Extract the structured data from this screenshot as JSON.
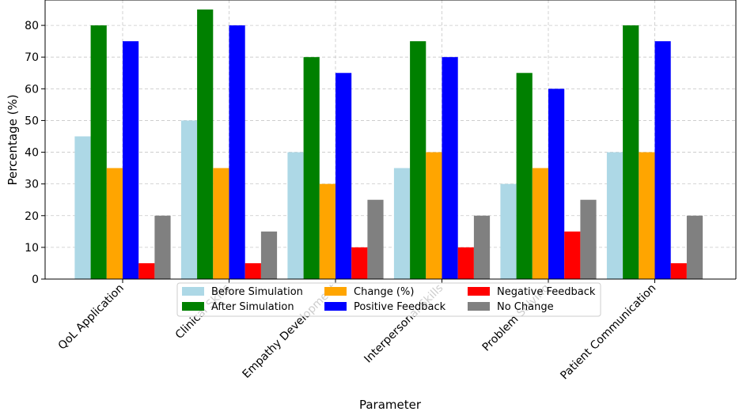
{
  "chart_data": {
    "type": "bar",
    "title": "",
    "xlabel": "Parameter",
    "ylabel": "Percentage (%)",
    "ylim": [
      0,
      88
    ],
    "yticks": [
      0,
      10,
      20,
      30,
      40,
      50,
      60,
      70,
      80
    ],
    "grid": true,
    "legend_position": "bottom-center",
    "categories": [
      "QoL Application",
      "Clinical Skills",
      "Empathy Development",
      "Interpersonal Skills",
      "Problem Solving",
      "Patient Communication"
    ],
    "series": [
      {
        "name": "Before Simulation",
        "color": "#add8e6",
        "values": [
          45,
          50,
          40,
          35,
          30,
          40
        ]
      },
      {
        "name": "After Simulation",
        "color": "#008000",
        "values": [
          80,
          85,
          70,
          75,
          65,
          80
        ]
      },
      {
        "name": "Change (%)",
        "color": "#ffa500",
        "values": [
          35,
          35,
          30,
          40,
          35,
          40
        ]
      },
      {
        "name": "Positive Feedback",
        "color": "#0000ff",
        "values": [
          75,
          80,
          65,
          70,
          60,
          75
        ]
      },
      {
        "name": "Negative Feedback",
        "color": "#ff0000",
        "values": [
          5,
          5,
          10,
          10,
          15,
          5
        ]
      },
      {
        "name": "No Change",
        "color": "#808080",
        "values": [
          20,
          15,
          25,
          20,
          25,
          20
        ]
      }
    ]
  }
}
